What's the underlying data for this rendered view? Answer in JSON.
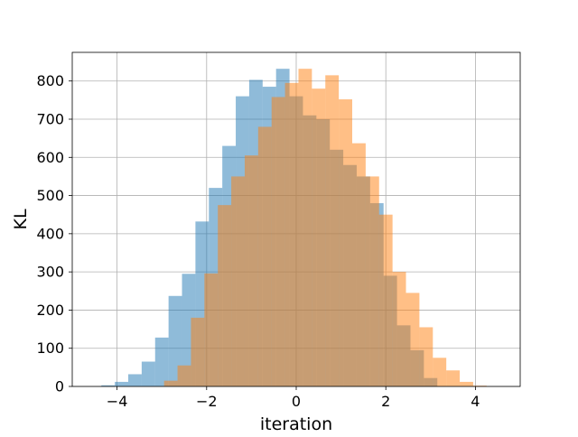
{
  "chart_data": {
    "type": "bar",
    "xlabel": "iteration",
    "ylabel": "KL",
    "xlim": [
      -5,
      5
    ],
    "ylim": [
      0,
      875
    ],
    "grid": true,
    "xticks": [
      -4,
      -2,
      0,
      2,
      4
    ],
    "xtick_labels": [
      "−4",
      "−2",
      "0",
      "2",
      "4"
    ],
    "yticks": [
      0,
      100,
      200,
      300,
      400,
      500,
      600,
      700,
      800
    ],
    "yticks_labels": [
      "0",
      "100",
      "200",
      "300",
      "400",
      "500",
      "600",
      "700",
      "800"
    ],
    "series": [
      {
        "color": "#1f77b4",
        "opacity": 0.5,
        "bins": [
          [
            -4.35,
            -4.05,
            3
          ],
          [
            -4.05,
            -3.75,
            12
          ],
          [
            -3.75,
            -3.45,
            32
          ],
          [
            -3.45,
            -3.15,
            65
          ],
          [
            -3.15,
            -2.85,
            128
          ],
          [
            -2.85,
            -2.55,
            237
          ],
          [
            -2.55,
            -2.25,
            295
          ],
          [
            -2.25,
            -1.95,
            432
          ],
          [
            -1.95,
            -1.65,
            520
          ],
          [
            -1.65,
            -1.35,
            630
          ],
          [
            -1.35,
            -1.05,
            760
          ],
          [
            -1.05,
            -0.75,
            803
          ],
          [
            -0.75,
            -0.45,
            785
          ],
          [
            -0.45,
            -0.15,
            832
          ],
          [
            -0.15,
            0.15,
            760
          ],
          [
            0.15,
            0.45,
            710
          ],
          [
            0.45,
            0.75,
            700
          ],
          [
            0.75,
            1.05,
            620
          ],
          [
            1.05,
            1.35,
            580
          ],
          [
            1.35,
            1.65,
            550
          ],
          [
            1.65,
            1.95,
            480
          ],
          [
            1.95,
            2.25,
            290
          ],
          [
            2.25,
            2.55,
            160
          ],
          [
            2.55,
            2.85,
            95
          ],
          [
            2.85,
            3.15,
            22
          ]
        ]
      },
      {
        "color": "#ff7f0e",
        "opacity": 0.5,
        "bins": [
          [
            -2.95,
            -2.65,
            15
          ],
          [
            -2.65,
            -2.35,
            55
          ],
          [
            -2.35,
            -2.05,
            180
          ],
          [
            -2.05,
            -1.75,
            296
          ],
          [
            -1.75,
            -1.45,
            475
          ],
          [
            -1.45,
            -1.15,
            550
          ],
          [
            -1.15,
            -0.85,
            605
          ],
          [
            -0.85,
            -0.55,
            680
          ],
          [
            -0.55,
            -0.25,
            758
          ],
          [
            -0.25,
            0.05,
            795
          ],
          [
            0.05,
            0.35,
            832
          ],
          [
            0.35,
            0.65,
            780
          ],
          [
            0.65,
            0.95,
            815
          ],
          [
            0.95,
            1.25,
            752
          ],
          [
            1.25,
            1.55,
            637
          ],
          [
            1.55,
            1.85,
            550
          ],
          [
            1.85,
            2.15,
            450
          ],
          [
            2.15,
            2.45,
            300
          ],
          [
            2.45,
            2.75,
            245
          ],
          [
            2.75,
            3.05,
            155
          ],
          [
            3.05,
            3.35,
            75
          ],
          [
            3.35,
            3.65,
            42
          ],
          [
            3.65,
            3.95,
            12
          ],
          [
            3.95,
            4.25,
            2
          ]
        ]
      }
    ]
  }
}
